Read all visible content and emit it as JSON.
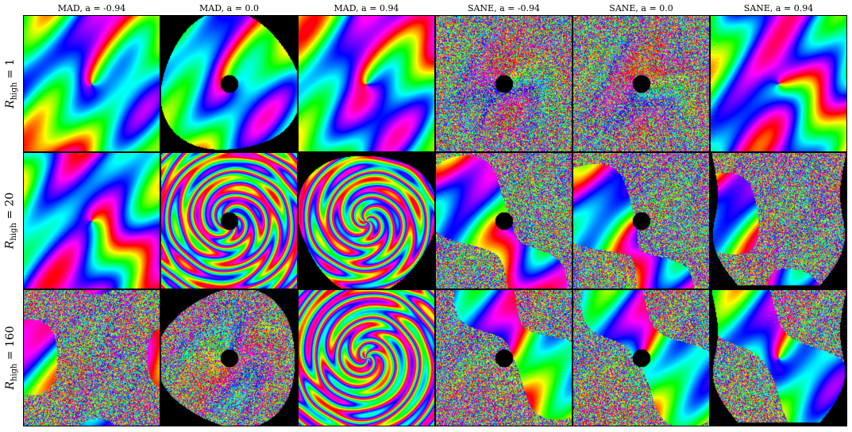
{
  "figure": {
    "columns": [
      {
        "title": "MAD, a = -0.94"
      },
      {
        "title": "MAD, a = 0.0"
      },
      {
        "title": "MAD, a = 0.94"
      },
      {
        "title": "SANE, a = -0.94"
      },
      {
        "title": "SANE, a = 0.0"
      },
      {
        "title": "SANE, a = 0.94"
      }
    ],
    "rows": [
      {
        "symbol": "R",
        "subscript": "high",
        "value": "= 1"
      },
      {
        "symbol": "R",
        "subscript": "high",
        "value": "= 20"
      },
      {
        "symbol": "R",
        "subscript": "high",
        "value": "= 160"
      }
    ],
    "colormap": "hsv",
    "background_color": "#000000",
    "panels": [
      [
        {
          "style": "smooth",
          "mask": "full",
          "hole": false
        },
        {
          "style": "smooth",
          "mask": "disk",
          "hole": true
        },
        {
          "style": "smooth",
          "mask": "full",
          "hole": false
        },
        {
          "style": "noisy",
          "mask": "full",
          "hole": true
        },
        {
          "style": "noisy",
          "mask": "full",
          "hole": true
        },
        {
          "style": "smooth",
          "mask": "full",
          "hole": false
        }
      ],
      [
        {
          "style": "smooth",
          "mask": "full",
          "hole": false
        },
        {
          "style": "banded",
          "mask": "full",
          "hole": true
        },
        {
          "style": "banded",
          "mask": "disk",
          "hole": false
        },
        {
          "style": "mixed",
          "mask": "full",
          "hole": true
        },
        {
          "style": "mixed",
          "mask": "full",
          "hole": true
        },
        {
          "style": "mixed",
          "mask": "lens",
          "hole": false
        }
      ],
      [
        {
          "style": "mixed",
          "mask": "full",
          "hole": false
        },
        {
          "style": "noisy",
          "mask": "disk",
          "hole": true
        },
        {
          "style": "banded",
          "mask": "full",
          "hole": false
        },
        {
          "style": "mixed",
          "mask": "full",
          "hole": true
        },
        {
          "style": "mixed",
          "mask": "full",
          "hole": true
        },
        {
          "style": "mixed",
          "mask": "lens",
          "hole": false
        }
      ]
    ]
  }
}
